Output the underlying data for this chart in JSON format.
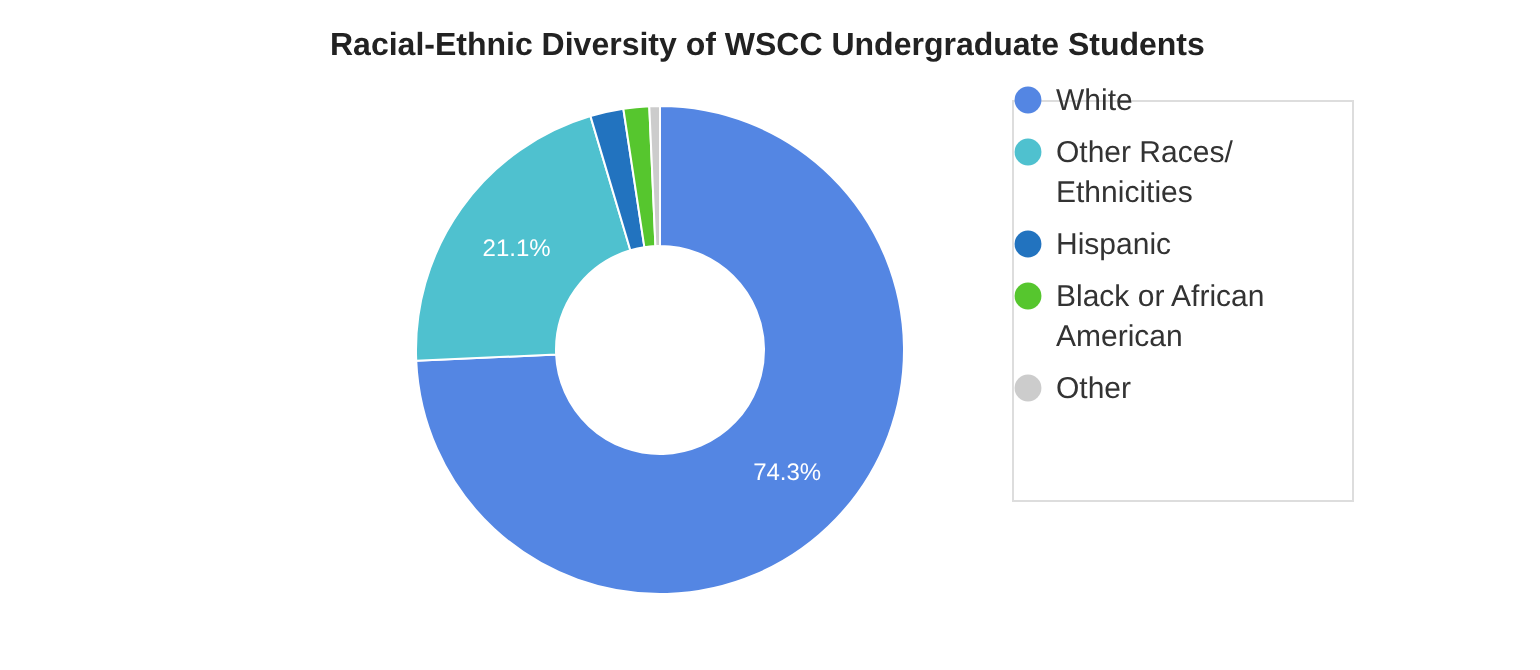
{
  "chart_data": {
    "type": "donut",
    "title": "Racial-Ethnic Diversity of WSCC Undergraduate Students",
    "categories": [
      "White",
      "Other Races/ Ethnicities",
      "Hispanic",
      "Black or African American",
      "Other"
    ],
    "values": [
      74.3,
      21.1,
      2.2,
      1.7,
      0.7
    ],
    "colors": [
      "#5486e3",
      "#4fc1cf",
      "#2273bf",
      "#56c62e",
      "#cccccc"
    ],
    "value_labels": [
      "74.3%",
      "21.1%",
      null,
      null,
      null
    ],
    "legend": "right"
  }
}
